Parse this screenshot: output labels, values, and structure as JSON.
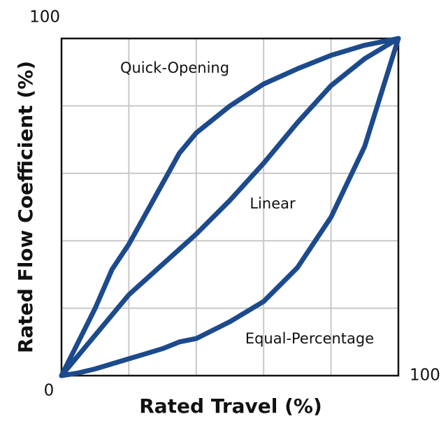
{
  "chart_data": {
    "type": "line",
    "x_label": "Rated Travel (%)",
    "y_label": "Rated Flow Coefficient (%)",
    "x": [
      0,
      5,
      10,
      15,
      20,
      25,
      30,
      35,
      40,
      50,
      60,
      70,
      80,
      90,
      100
    ],
    "series": [
      {
        "name": "Quick-Opening",
        "color": "#1c4a8c",
        "values": [
          0,
          10,
          20,
          31.5,
          39,
          48,
          57,
          66,
          72,
          80,
          86.5,
          91,
          95,
          98,
          100
        ]
      },
      {
        "name": "Linear",
        "color": "#1c4a8c",
        "values": [
          0,
          6,
          12,
          18,
          24,
          28.5,
          33,
          37.5,
          42,
          52,
          63,
          75,
          86,
          94,
          100
        ]
      },
      {
        "name": "Equal-Percentage",
        "color": "#1c4a8c",
        "values": [
          0,
          0.8,
          2,
          3.5,
          5,
          6.5,
          8,
          10,
          11,
          16,
          22,
          32,
          47,
          68,
          100
        ]
      }
    ],
    "xlim": [
      0,
      100
    ],
    "ylim": [
      0,
      100
    ],
    "xticks": [
      0,
      100
    ],
    "yticks": [
      100
    ],
    "xgrid": [
      20,
      40,
      60,
      80
    ],
    "ygrid": [
      20,
      40,
      60,
      80
    ]
  }
}
